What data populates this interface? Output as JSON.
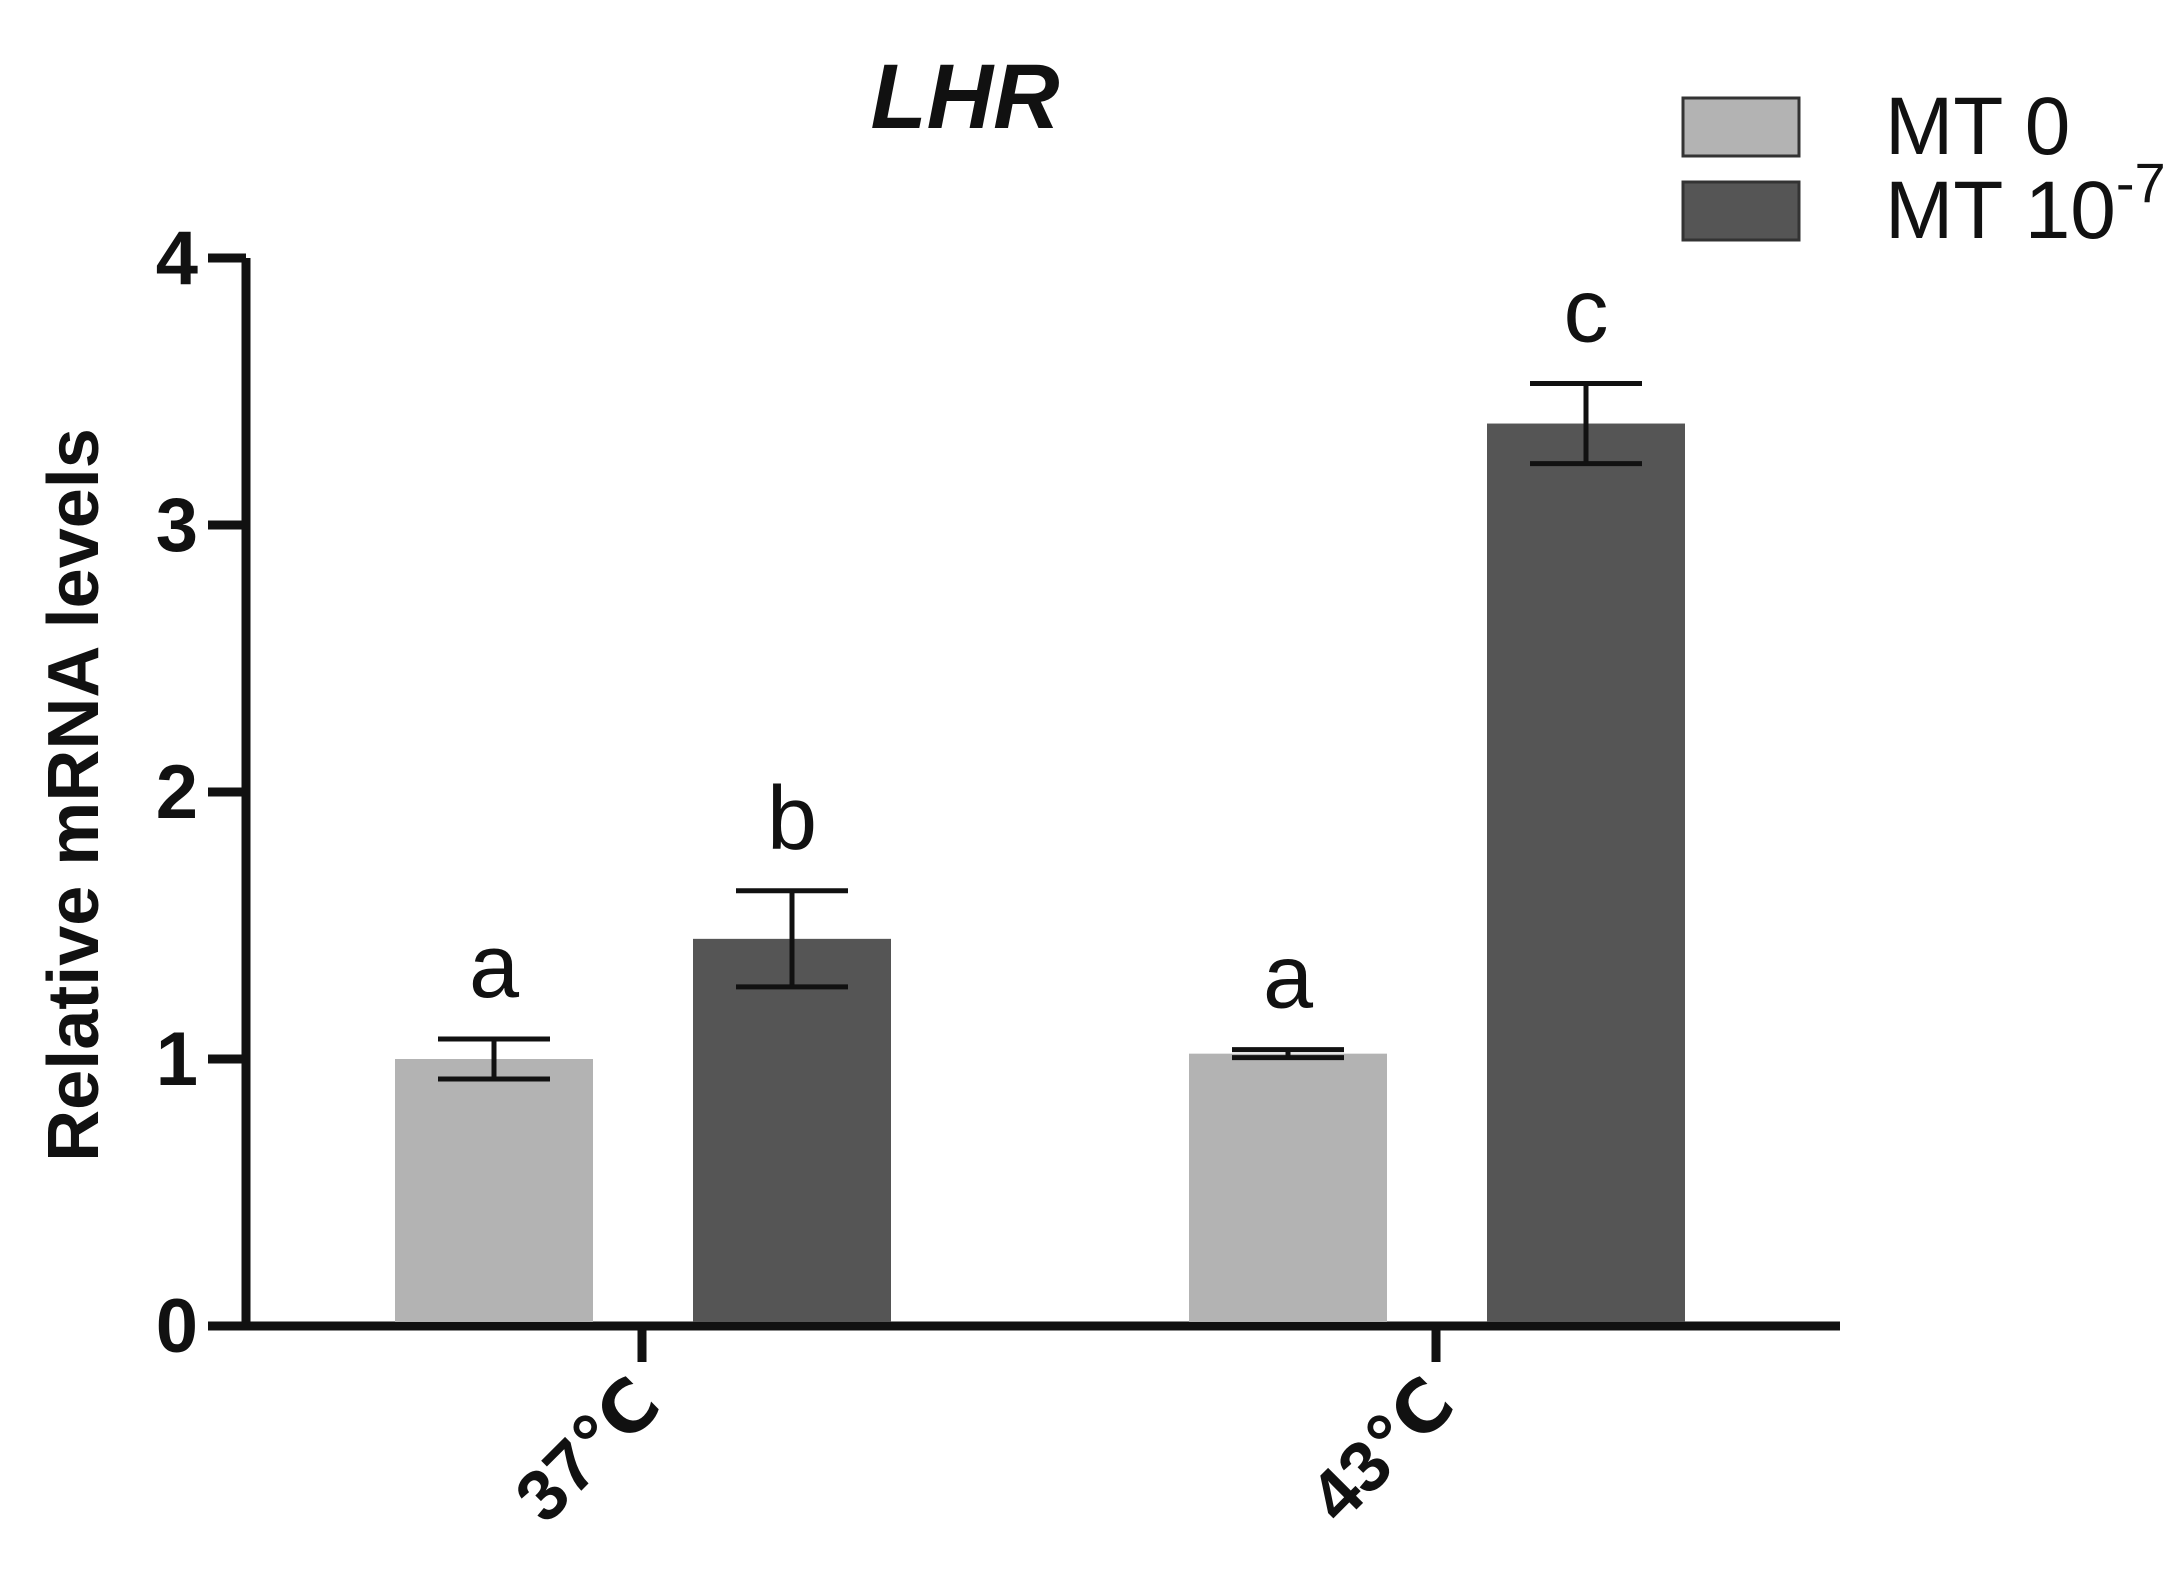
{
  "chart_data": {
    "type": "bar",
    "title": "LHR",
    "xlabel": "",
    "ylabel": "Relative mRNA levels",
    "ylim": [
      0,
      4
    ],
    "yticks": [
      "0",
      "1",
      "2",
      "3",
      "4"
    ],
    "categories": [
      "37℃",
      "43℃"
    ],
    "legend_position": "top-right",
    "series": [
      {
        "name": "MT 0",
        "legend_main": "MT 0",
        "legend_sup": "",
        "color": "#b3b3b3",
        "values": [
          1.0,
          1.02
        ],
        "errors": [
          0.075,
          0.015
        ],
        "letters": [
          "a",
          "a"
        ]
      },
      {
        "name": "MT 10-7",
        "legend_main": "MT 10",
        "legend_sup": "-7",
        "color": "#555555",
        "values": [
          1.45,
          3.38
        ],
        "errors": [
          0.18,
          0.15
        ],
        "letters": [
          "b",
          "c"
        ]
      }
    ]
  }
}
